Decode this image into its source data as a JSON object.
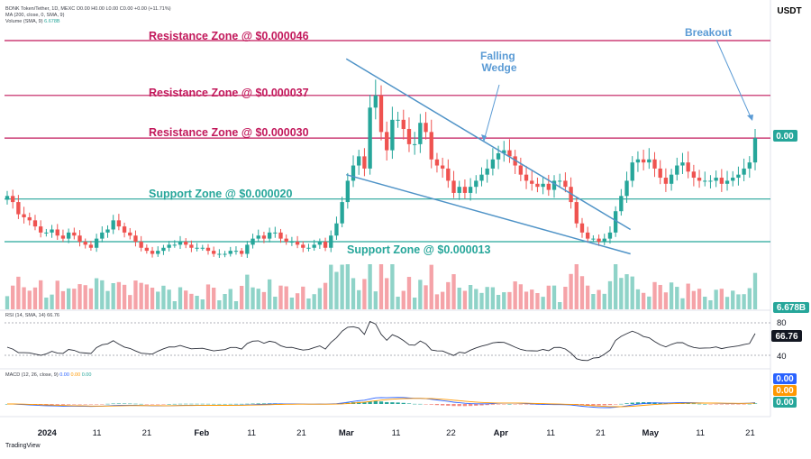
{
  "header": {
    "currency": "USDT",
    "legend_main": "BONK Token/Tether, 1D, MEXC  O0.00  H0.00  L0.00  C0.00  +0.00 (+11.71%)",
    "legend_ma": "MA (200, close, 0, SMA, 9)",
    "legend_volume_label": "Volume (SMA, 9)",
    "legend_volume_value": "6.678B",
    "legend_rsi_label": "RSI (14, SMA, 14)",
    "legend_rsi_value": "66.76",
    "legend_macd_label": "MACD (12, 26, close, 9)",
    "legend_macd_values": [
      "0.00",
      "0.00",
      "0.00"
    ]
  },
  "footer": {
    "logo": "TradingView"
  },
  "colors": {
    "up": "#26a69a",
    "down": "#ef5350",
    "vol_up": "#8fd3c8",
    "vol_down": "#f5a3a8",
    "resistance": "#c2185b",
    "support": "#26a69a",
    "wedge": "#4f93c7",
    "annotation": "#5b9bd5",
    "rsi_line": "#2a2e39",
    "macd_line": "#2962ff",
    "signal_line": "#ff9800"
  },
  "chart_data": {
    "type": "candlestick",
    "symbol": "BONK Token/Tether",
    "interval": "1D",
    "currency": "USDT",
    "x_ticks": [
      "2024",
      "11",
      "21",
      "Feb",
      "11",
      "21",
      "Mar",
      "11",
      "22",
      "Apr",
      "11",
      "21",
      "May",
      "11",
      "21"
    ],
    "x_start_date": "2023-12-24",
    "x_end_date": "2024-05-22",
    "price_tag": "0.00",
    "volume_tag": "6.678B",
    "zones": [
      {
        "name": "Resistance Zone @ $0.000046",
        "kind": "resistance",
        "price": 4.6e-05
      },
      {
        "name": "Resistance Zone @ $0.000037",
        "kind": "resistance",
        "price": 3.7e-05
      },
      {
        "name": "Resistance Zone @ $0.000030",
        "kind": "resistance",
        "price": 3e-05
      },
      {
        "name": "Support Zone @ $0.000020",
        "kind": "support",
        "price": 2e-05
      },
      {
        "name": "Support Zone @ $0.000013",
        "kind": "support",
        "price": 1.3e-05
      }
    ],
    "annotations": [
      "Falling Wedge",
      "Breakout"
    ],
    "wedge_lines": [
      {
        "name": "upper",
        "from": [
          "2024-03-01",
          4.3e-05
        ],
        "to": [
          "2024-04-27",
          1.5e-05
        ]
      },
      {
        "name": "lower",
        "from": [
          "2024-03-01",
          2.4e-05
        ],
        "to": [
          "2024-04-27",
          1.1e-05
        ]
      }
    ],
    "close": [
      2.05e-05,
      1.95e-05,
      1.75e-05,
      1.7e-05,
      1.65e-05,
      1.55e-05,
      1.45e-05,
      1.45e-05,
      1.5e-05,
      1.4e-05,
      1.35e-05,
      1.45e-05,
      1.4e-05,
      1.3e-05,
      1.25e-05,
      1.2e-05,
      1.35e-05,
      1.45e-05,
      1.5e-05,
      1.65e-05,
      1.55e-05,
      1.45e-05,
      1.4e-05,
      1.3e-05,
      1.2e-05,
      1.15e-05,
      1.1e-05,
      1.15e-05,
      1.2e-05,
      1.25e-05,
      1.25e-05,
      1.3e-05,
      1.25e-05,
      1.2e-05,
      1.2e-05,
      1.2e-05,
      1.15e-05,
      1.1e-05,
      1.1e-05,
      1.1e-05,
      1.15e-05,
      1.15e-05,
      1.1e-05,
      1.25e-05,
      1.35e-05,
      1.4e-05,
      1.35e-05,
      1.45e-05,
      1.45e-05,
      1.35e-05,
      1.3e-05,
      1.3e-05,
      1.25e-05,
      1.2e-05,
      1.2e-05,
      1.25e-05,
      1.3e-05,
      1.2e-05,
      1.4e-05,
      1.6e-05,
      1.95e-05,
      2.3e-05,
      2.55e-05,
      2.7e-05,
      2.5e-05,
      3.5e-05,
      3.7e-05,
      3.1e-05,
      2.8e-05,
      3.3e-05,
      3.3e-05,
      3.15e-05,
      2.9e-05,
      2.9e-05,
      3.25e-05,
      3.1e-05,
      2.65e-05,
      2.55e-05,
      2.5e-05,
      2.3e-05,
      2.1e-05,
      2.2e-05,
      2.1e-05,
      2.2e-05,
      2.3e-05,
      2.4e-05,
      2.5e-05,
      2.65e-05,
      2.75e-05,
      2.8e-05,
      2.7e-05,
      2.55e-05,
      2.4e-05,
      2.3e-05,
      2.25e-05,
      2.2e-05,
      2.25e-05,
      2.15e-05,
      2.3e-05,
      2.3e-05,
      2.2e-05,
      1.95e-05,
      1.6e-05,
      1.45e-05,
      1.35e-05,
      1.35e-05,
      1.3e-05,
      1.35e-05,
      1.45e-05,
      1.8e-05,
      2.05e-05,
      2.3e-05,
      2.6e-05,
      2.65e-05,
      2.6e-05,
      2.65e-05,
      2.5e-05,
      2.35e-05,
      2.25e-05,
      2.4e-05,
      2.55e-05,
      2.6e-05,
      2.45e-05,
      2.35e-05,
      2.3e-05,
      2.3e-05,
      2.3e-05,
      2.35e-05,
      2.25e-05,
      2.3e-05,
      2.35e-05,
      2.4e-05,
      2.5e-05,
      2.6e-05,
      3e-05
    ],
    "rsi": {
      "levels": [
        80,
        40
      ],
      "last": 66.76
    },
    "macd": {
      "values": [
        "0.00",
        "0.00",
        "0.00"
      ]
    }
  }
}
